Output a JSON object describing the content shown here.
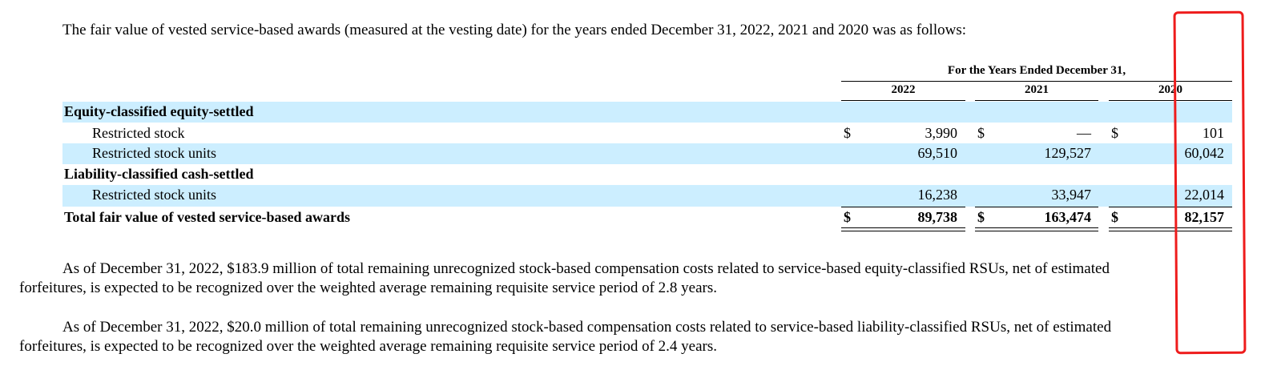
{
  "intro": "The fair value of vested service-based awards (measured at the vesting date) for the years ended December 31, 2022, 2021 and 2020 was as follows:",
  "table": {
    "header": "For the Years Ended December 31,",
    "years": [
      "2022",
      "2021",
      "2020"
    ],
    "sections": [
      {
        "label": "Equity-classified equity-settled"
      },
      {
        "label": "Liability-classified cash-settled"
      }
    ],
    "rows": [
      {
        "label": "Restricted stock",
        "values": [
          "3,990",
          "—",
          "101"
        ],
        "currency": "$"
      },
      {
        "label": "Restricted stock units",
        "values": [
          "69,510",
          "129,527",
          "60,042"
        ]
      },
      {
        "label": "Restricted stock units",
        "values": [
          "16,238",
          "33,947",
          "22,014"
        ]
      }
    ],
    "total": {
      "label": "Total fair value of vested service-based awards",
      "values": [
        "89,738",
        "163,474",
        "82,157"
      ],
      "currency": "$"
    }
  },
  "paragraphs": [
    "As of December 31, 2022, $183.9 million of total remaining unrecognized stock-based compensation costs related to service-based equity-classified RSUs, net of estimated",
    "forfeitures, is expected to be recognized over the weighted average remaining requisite service period of 2.8 years.",
    "As of December 31, 2022, $20.0 million of total remaining unrecognized stock-based compensation costs related to service-based liability-classified RSUs, net of estimated",
    "forfeitures, is expected to be recognized over the weighted average remaining requisite service period of 2.4 years."
  ],
  "colors": {
    "band": "#cceeff",
    "annotation": "#ee1c1c"
  }
}
